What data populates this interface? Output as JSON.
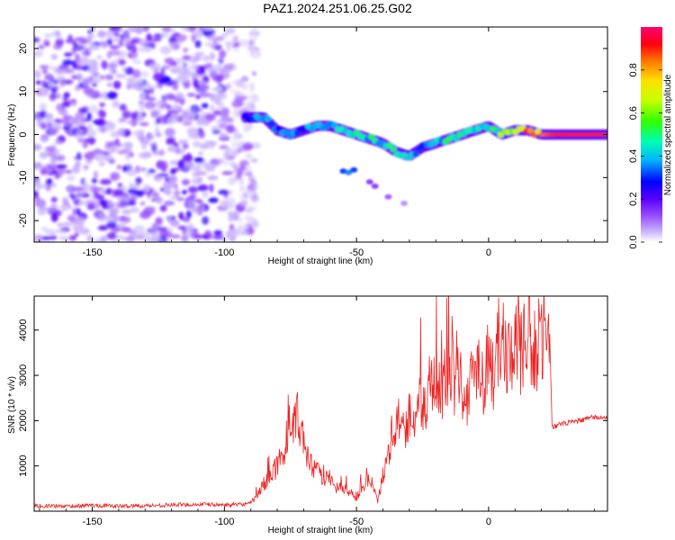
{
  "title": "PAZ1.2024.251.06.25.G02",
  "chart_data": [
    {
      "type": "heatmap",
      "xlabel": "Height of straight line (km)",
      "ylabel": "Frequency (Hz)",
      "xlim": [
        -172,
        45
      ],
      "ylim": [
        -25,
        25
      ],
      "xticks": [
        -150,
        -100,
        -50,
        0
      ],
      "yticks": [
        -20,
        -10,
        0,
        10,
        20
      ],
      "colorbar": {
        "label": "Normalized spectral amplitude",
        "range": [
          0,
          1
        ],
        "ticks": [
          0.0,
          0.2,
          0.4,
          0.6,
          0.8
        ],
        "colors": [
          "#ffffff",
          "#b59dff",
          "#7b00ff",
          "#0000ff",
          "#00cfff",
          "#00ff7a",
          "#8cff00",
          "#ffff00",
          "#ff9b00",
          "#ff0000",
          "#ff0066"
        ]
      },
      "ridge": {
        "x": [
          -92,
          -85,
          -80,
          -75,
          -70,
          -65,
          -60,
          -55,
          -50,
          -45,
          -40,
          -35,
          -30,
          -25,
          -20,
          -15,
          -10,
          -5,
          0,
          5,
          10,
          15,
          20,
          25,
          30,
          35,
          40,
          45
        ],
        "y": [
          4,
          4,
          1,
          0,
          1,
          2,
          2,
          1,
          0,
          -1,
          -2,
          -4,
          -5,
          -3,
          -2,
          -1,
          0,
          1,
          2,
          0,
          1,
          1,
          0,
          0,
          0,
          0,
          0,
          0
        ],
        "amplitude": [
          0.35,
          0.4,
          0.3,
          0.35,
          0.35,
          0.4,
          0.45,
          0.45,
          0.45,
          0.45,
          0.45,
          0.45,
          0.4,
          0.35,
          0.4,
          0.45,
          0.45,
          0.5,
          0.5,
          0.6,
          0.75,
          0.8,
          0.85,
          0.9,
          0.9,
          0.9,
          0.9,
          0.9
        ]
      }
    },
    {
      "type": "line",
      "xlabel": "Height of straight line (km)",
      "ylabel": "SNR (10 * v/v)",
      "xlim": [
        -172,
        45
      ],
      "ylim": [
        0,
        4750
      ],
      "xticks": [
        -150,
        -100,
        -50,
        0
      ],
      "yticks": [
        1000,
        2000,
        3000,
        4000
      ],
      "color": "#ee2222",
      "series": [
        {
          "x": [
            -172,
            -160,
            -150,
            -140,
            -130,
            -120,
            -110,
            -100,
            -95,
            -90,
            -88,
            -85,
            -80,
            -76,
            -73,
            -71,
            -69,
            -66,
            -63,
            -60,
            -58,
            -55,
            -52,
            -50,
            -48,
            -46,
            -44,
            -42,
            -40,
            -38,
            -36,
            -34,
            -32,
            -30,
            -28,
            -26,
            -24,
            -22,
            -20,
            -18,
            -16,
            -14,
            -12,
            -10,
            -8,
            -6,
            -4,
            -2,
            0,
            2,
            4,
            6,
            8,
            10,
            12,
            14,
            16,
            18,
            20,
            22,
            23,
            24,
            26,
            30,
            35,
            40,
            45
          ],
          "y": [
            120,
            110,
            130,
            110,
            120,
            140,
            150,
            140,
            140,
            180,
            300,
            600,
            1000,
            1500,
            2200,
            1800,
            1200,
            900,
            800,
            700,
            500,
            500,
            400,
            300,
            500,
            700,
            600,
            200,
            800,
            1300,
            1800,
            2000,
            1700,
            2200,
            2000,
            2500,
            2200,
            2700,
            3000,
            2600,
            3200,
            2400,
            3300,
            2800,
            2400,
            3100,
            3400,
            2900,
            3400,
            3000,
            3800,
            3600,
            3300,
            4000,
            3500,
            3700,
            3400,
            3400,
            4100,
            3600,
            4300,
            1850,
            1900,
            1950,
            2000,
            2080,
            2050
          ]
        }
      ]
    }
  ]
}
